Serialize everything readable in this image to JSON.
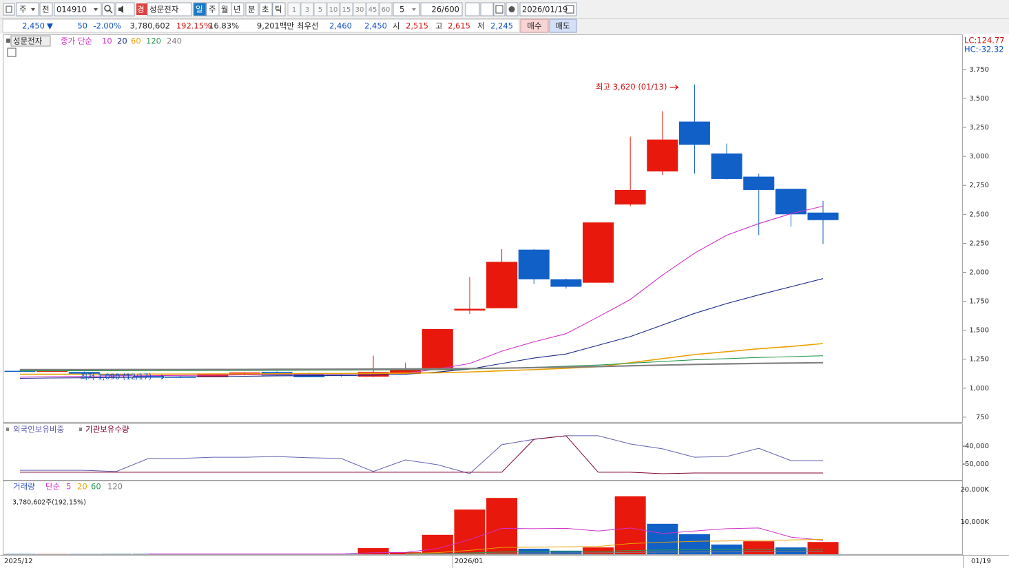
{
  "toolbar": {
    "market": "주",
    "mode": "전",
    "code": "014910",
    "name": "성문전자",
    "name_badge": "경",
    "periods": [
      "일",
      "주",
      "월",
      "년",
      "분",
      "초",
      "틱"
    ],
    "intervals": [
      "1",
      "3",
      "5",
      "10",
      "15",
      "30",
      "45",
      "60"
    ],
    "interval_input": "5",
    "count": "26/600",
    "date": "2026/01/19"
  },
  "quote": {
    "price": "2,450",
    "direction": "▼",
    "change": "50",
    "change_rate": "-2.00%",
    "volume": "3,780,602",
    "volume_rate": "192.15%",
    "turnover": "16.83%",
    "amount": "9,201백만",
    "best_label": "최우선",
    "best_ask": "2,460",
    "best_bid": "2,450",
    "open_label": "시",
    "open": "2,515",
    "high_label": "고",
    "high": "2,615",
    "low_label": "저",
    "low": "2,245",
    "buy": "매수",
    "sell": "매도"
  },
  "chart_data": [
    {
      "type": "candlestick",
      "title": "성문전자",
      "legend_label": "종가 단순",
      "lc": "LC:124.77",
      "hc": "HC:-32.32",
      "up_color": "#e8180c",
      "down_color": "#1060c8",
      "open": [
        1150,
        1145,
        1140,
        1120,
        1105,
        1100,
        1095,
        1115,
        1140,
        1130,
        1115,
        1100,
        1125,
        1155,
        1670,
        1690,
        2195,
        1940,
        1910,
        2585,
        2870,
        3300,
        3025,
        2825,
        2720,
        2515
      ],
      "high": [
        1155,
        1155,
        1145,
        1125,
        1110,
        1105,
        1125,
        1140,
        1145,
        1135,
        1120,
        1280,
        1220,
        1510,
        1960,
        2200,
        2200,
        1945,
        2430,
        3170,
        3390,
        3620,
        3110,
        2850,
        2720,
        2615
      ],
      "low": [
        1140,
        1140,
        1120,
        1105,
        1095,
        1090,
        1095,
        1110,
        1105,
        1095,
        1100,
        1095,
        1120,
        1155,
        1640,
        1690,
        1900,
        1860,
        1910,
        2570,
        2840,
        2850,
        2800,
        2320,
        2395,
        2245
      ],
      "close": [
        1145,
        1150,
        1125,
        1110,
        1095,
        1090,
        1120,
        1135,
        1110,
        1095,
        1105,
        1140,
        1160,
        1510,
        1685,
        2090,
        1940,
        1875,
        2430,
        2710,
        3145,
        3100,
        2805,
        2710,
        2500,
        2450
      ],
      "series": [
        {
          "name": "10",
          "color": "#d030c8",
          "values": [
            1095,
            1100,
            1103,
            1106,
            1108,
            1110,
            1112,
            1115,
            1118,
            1120,
            1122,
            1125,
            1130,
            1165,
            1213,
            1320,
            1400,
            1470,
            1615,
            1765,
            1975,
            2165,
            2320,
            2420,
            2505,
            2570
          ]
        },
        {
          "name": "20",
          "color": "#1a2a8a",
          "values": [
            1085,
            1088,
            1090,
            1093,
            1095,
            1098,
            1100,
            1103,
            1106,
            1108,
            1110,
            1113,
            1120,
            1140,
            1165,
            1213,
            1260,
            1295,
            1370,
            1445,
            1545,
            1645,
            1730,
            1805,
            1875,
            1945
          ]
        },
        {
          "name": "60",
          "color": "#e8a000",
          "values": [
            1120,
            1120,
            1121,
            1121,
            1122,
            1122,
            1123,
            1124,
            1125,
            1126,
            1127,
            1128,
            1130,
            1133,
            1140,
            1150,
            1160,
            1172,
            1185,
            1220,
            1255,
            1290,
            1315,
            1340,
            1360,
            1385
          ]
        },
        {
          "name": "120",
          "color": "#2a9a50",
          "values": [
            1150,
            1150,
            1151,
            1151,
            1152,
            1152,
            1153,
            1153,
            1154,
            1155,
            1156,
            1157,
            1158,
            1160,
            1165,
            1172,
            1180,
            1190,
            1200,
            1215,
            1230,
            1245,
            1255,
            1265,
            1272,
            1280
          ]
        },
        {
          "name": "240",
          "color": "#808080",
          "values": [
            1160,
            1160,
            1160,
            1161,
            1161,
            1161,
            1162,
            1162,
            1163,
            1163,
            1164,
            1165,
            1166,
            1168,
            1170,
            1173,
            1177,
            1182,
            1187,
            1193,
            1199,
            1205,
            1210,
            1214,
            1217,
            1220
          ]
        }
      ],
      "annotations": [
        "최고 3,620 (01/13)",
        "최저 1,090 (12/17)"
      ],
      "ylim": [
        708,
        4040
      ],
      "yticks": [
        750,
        {
          "value": 1000,
          "label": "1,000"
        },
        {
          "value": 1250,
          "label": "1,250"
        },
        {
          "value": 1500,
          "label": "1,500"
        },
        {
          "value": 1750,
          "label": "1,750"
        },
        {
          "value": 2000,
          "label": "2,000"
        },
        {
          "value": 2250,
          "label": "2,250"
        },
        {
          "value": 2500,
          "label": "2,500"
        },
        {
          "value": 2750,
          "label": "2,750"
        },
        {
          "value": 3000,
          "label": "3,000"
        },
        {
          "value": 3250,
          "label": "3,250"
        },
        {
          "value": 3500,
          "label": "3,500"
        },
        {
          "value": 3750,
          "label": "3,750"
        }
      ]
    },
    {
      "type": "line",
      "series": [
        {
          "name": "외국인보유비중",
          "color": "#6060b0",
          "values": [
            -53500,
            -53500,
            -53500,
            -54200,
            -46900,
            -46900,
            -46200,
            -46200,
            -45800,
            -46500,
            -46900,
            -54200,
            -47700,
            -50400,
            -55400,
            -39200,
            -36200,
            -34200,
            -34200,
            -38800,
            -41500,
            -46200,
            -45800,
            -41200,
            -48100,
            -48100
          ]
        },
        {
          "name": "기관보유수량",
          "color": "#800030",
          "values": [
            -54600,
            -54600,
            -54600,
            -54600,
            -54600,
            -54600,
            -54600,
            -54600,
            -54600,
            -54600,
            -54600,
            -54600,
            -54600,
            -54600,
            -54600,
            -54600,
            -36200,
            -34200,
            -54600,
            -54600,
            -55400,
            -55000,
            -55000,
            -55000,
            -55000,
            -55000
          ]
        }
      ],
      "ylim": [
        -58850,
        -27700
      ],
      "yticks": [
        {
          "value": -40000,
          "label": "-40,000"
        },
        {
          "value": -50000,
          "label": "-50,000"
        }
      ]
    },
    {
      "type": "bar",
      "name": "거래량",
      "legend_label": "단순",
      "info": "3,780,602주(192,15%)",
      "values": [
        80,
        60,
        70,
        90,
        100,
        120,
        90,
        80,
        70,
        60,
        100,
        1900,
        600,
        6000,
        13800,
        17400,
        1700,
        1100,
        2100,
        17900,
        9400,
        6200,
        3000,
        4000,
        2100,
        3780.602
      ],
      "colors": [
        "#1060c8",
        "#e8180c",
        "#1060c8",
        "#1060c8",
        "#1060c8",
        "#1060c8",
        "#e8180c",
        "#e8180c",
        "#1060c8",
        "#1060c8",
        "#1060c8",
        "#e8180c",
        "#e8180c",
        "#e8180c",
        "#e8180c",
        "#e8180c",
        "#1060c8",
        "#1060c8",
        "#e8180c",
        "#e8180c",
        "#1060c8",
        "#1060c8",
        "#1060c8",
        "#e8180c",
        "#1060c8",
        "#e8180c"
      ],
      "series": [
        {
          "name": "5",
          "color": "#d030c8",
          "values": [
            null,
            null,
            null,
            null,
            90,
            90,
            90,
            85,
            80,
            75,
            80,
            460,
            560,
            1750,
            4500,
            8000,
            7900,
            8000,
            7200,
            8100,
            6400,
            7200,
            7900,
            8100,
            5300,
            4300
          ]
        },
        {
          "name": "20",
          "color": "#e8a000",
          "values": [
            null,
            null,
            null,
            null,
            null,
            null,
            null,
            null,
            null,
            null,
            null,
            null,
            200,
            500,
            1200,
            2100,
            2200,
            2300,
            2400,
            3300,
            3700,
            4000,
            4100,
            4300,
            4400,
            4600
          ]
        },
        {
          "name": "60",
          "color": "#2a9a50",
          "values": [
            null,
            null,
            null,
            null,
            null,
            null,
            null,
            null,
            null,
            null,
            null,
            null,
            100,
            200,
            400,
            700,
            750,
            800,
            850,
            1150,
            1300,
            1400,
            1450,
            1500,
            1550,
            1600
          ]
        },
        {
          "name": "120",
          "color": "#808080",
          "values": [
            null,
            null,
            null,
            null,
            null,
            null,
            null,
            null,
            null,
            null,
            null,
            null,
            50,
            100,
            200,
            350,
            380,
            400,
            430,
            580,
            650,
            700,
            720,
            750,
            780,
            800
          ]
        }
      ],
      "ylim": [
        0,
        22340
      ],
      "yticks": [
        {
          "value": 20000,
          "label": "20,000K"
        },
        {
          "value": 10000,
          "label": "10,000K"
        }
      ]
    }
  ],
  "x_axis": {
    "labels": [
      "2025/12",
      "2026/01",
      "01/19"
    ]
  }
}
